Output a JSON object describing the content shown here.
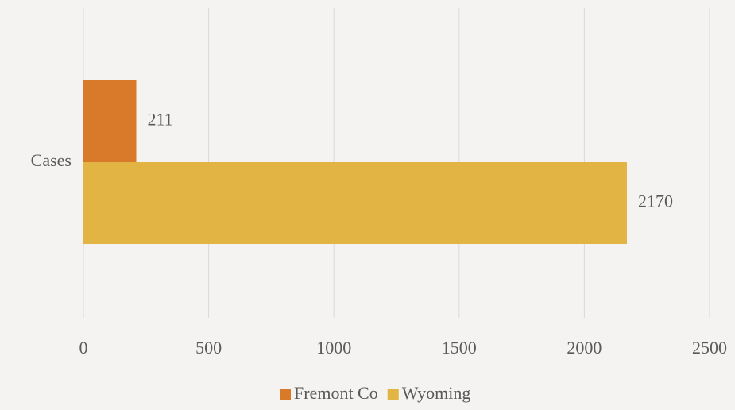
{
  "chart_data": {
    "type": "bar",
    "orientation": "horizontal",
    "categories": [
      "Cases"
    ],
    "series": [
      {
        "name": "Fremont Co",
        "color": "#d97a2b",
        "values": [
          211
        ]
      },
      {
        "name": "Wyoming",
        "color": "#e1b443",
        "values": [
          2170
        ]
      }
    ],
    "xlim": [
      0,
      2500
    ],
    "xticks": [
      0,
      500,
      1000,
      1500,
      2000,
      2500
    ],
    "grid": true,
    "legend": "bottom",
    "data_labels": true
  }
}
